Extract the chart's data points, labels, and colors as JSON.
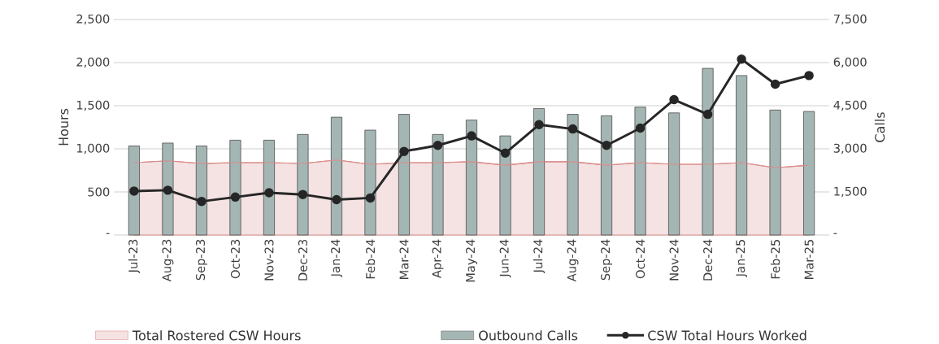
{
  "chart_data": {
    "type": "bar",
    "ylabel": "Hours",
    "y2label": "Calls",
    "categories": [
      "Jul-23",
      "Aug-23",
      "Sep-23",
      "Oct-23",
      "Nov-23",
      "Dec-23",
      "Jan-24",
      "Feb-24",
      "Mar-24",
      "Apr-24",
      "May-24",
      "Jun-24",
      "Jul-24",
      "Aug-24",
      "Sep-24",
      "Oct-24",
      "Nov-24",
      "Dec-24",
      "Jan-25",
      "Feb-25",
      "Mar-25"
    ],
    "series": [
      {
        "name": "Total Rostered CSW Hours",
        "type": "area",
        "axis": "y",
        "color": "#d98c8a",
        "values": [
          840,
          860,
          830,
          840,
          840,
          830,
          870,
          820,
          840,
          840,
          850,
          810,
          850,
          850,
          810,
          840,
          820,
          820,
          840,
          780,
          810
        ]
      },
      {
        "name": "Outbound Calls",
        "axis": "y2",
        "color": "#a4b6b4",
        "values": [
          3100,
          3200,
          3100,
          3300,
          3300,
          3500,
          4100,
          3650,
          4200,
          3500,
          4000,
          3450,
          4400,
          4200,
          4150,
          4450,
          4250,
          5800,
          5550,
          4350,
          4300
        ]
      },
      {
        "name": "CSW Total Hours Worked",
        "type": "line",
        "marker": "circle",
        "axis": "y",
        "color": "#262626",
        "values": [
          510,
          520,
          390,
          440,
          490,
          470,
          410,
          430,
          970,
          1040,
          1150,
          950,
          1280,
          1230,
          1040,
          1240,
          1570,
          1400,
          2040,
          1750,
          1850
        ]
      }
    ],
    "ylim": [
      0,
      2500
    ],
    "yticks": [
      {
        "value": 0,
        "label": "-"
      },
      {
        "value": 500,
        "label": "500"
      },
      {
        "value": 1000,
        "label": "1,000"
      },
      {
        "value": 1500,
        "label": "1,500"
      },
      {
        "value": 2000,
        "label": "2,000"
      },
      {
        "value": 2500,
        "label": "2,500"
      }
    ],
    "y2lim": [
      0,
      7500
    ],
    "y2ticks": [
      {
        "value": 0,
        "label": "-"
      },
      {
        "value": 1500,
        "label": "1,500"
      },
      {
        "value": 3000,
        "label": "3,000"
      },
      {
        "value": 4500,
        "label": "4,500"
      },
      {
        "value": 6000,
        "label": "6,000"
      },
      {
        "value": 7500,
        "label": "7,500"
      }
    ],
    "grid": "y",
    "legend": "bottom",
    "line_style": "solid"
  }
}
